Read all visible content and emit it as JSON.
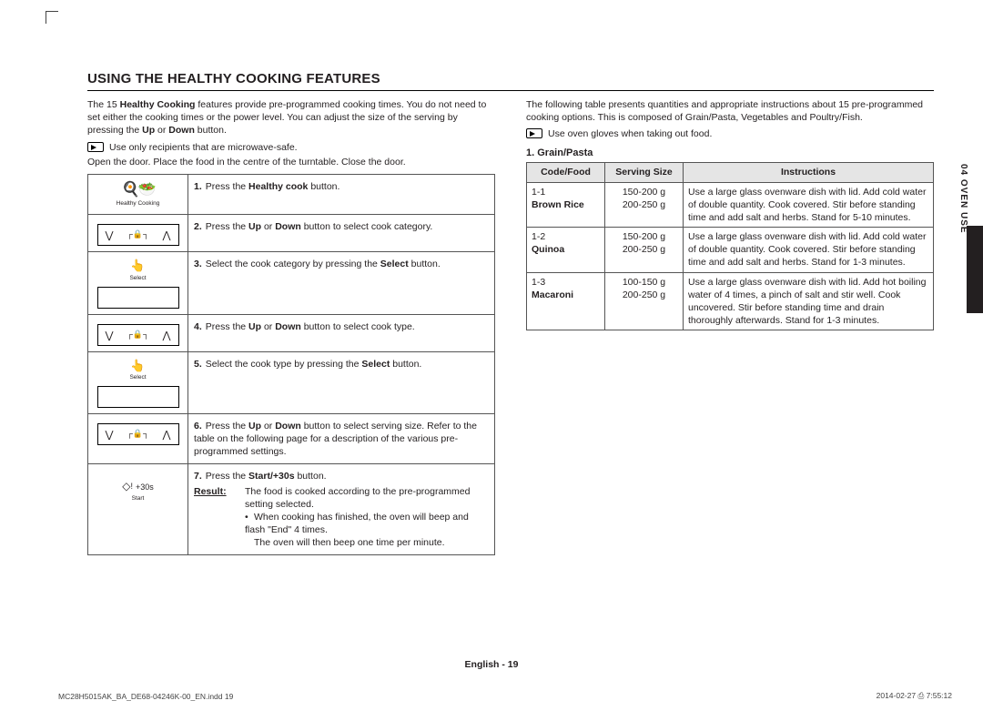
{
  "heading": "USING THE HEALTHY COOKING FEATURES",
  "left": {
    "intro_a": "The 15 ",
    "intro_bold": "Healthy Cooking",
    "intro_b": " features provide pre-programmed cooking times. You do not need to set either the cooking times or the power level. You can adjust the size of the serving by pressing the ",
    "intro_bold2": "Up",
    "intro_c": " or ",
    "intro_bold3": "Down",
    "intro_d": " button.",
    "note": "Use only recipients that are microwave-safe.",
    "open_door": "Open the door. Place the food in the centre of the turntable. Close the door.",
    "hc_label": "Healthy Cooking",
    "select_label": "Select",
    "start_label": "Start",
    "start_btn": "+30s",
    "steps": {
      "s1a": "Press the ",
      "s1b": "Healthy cook",
      "s1c": " button.",
      "s2a": "Press the ",
      "s2b": "Up",
      "s2c": " or ",
      "s2d": "Down",
      "s2e": " button to select cook category.",
      "s3a": "Select the cook category by pressing the ",
      "s3b": "Select",
      "s3c": " button.",
      "s4a": "Press the ",
      "s4b": "Up",
      "s4c": " or ",
      "s4d": "Down",
      "s4e": " button to select cook type.",
      "s5a": "Select the cook type by pressing the ",
      "s5b": "Select",
      "s5c": " button.",
      "s6a": "Press the ",
      "s6b": "Up",
      "s6c": " or ",
      "s6d": "Down",
      "s6e": " button to select serving size. Refer to the table on the following page for a description of the various pre-programmed settings.",
      "s7a": "Press the ",
      "s7b": "Start/+30s",
      "s7c": " button.",
      "result_lbl": "Result:",
      "s7r1": "The food is cooked according to the pre-programmed setting selected.",
      "s7r2": "When cooking has finished, the oven will beep and flash \"End\" 4 times.",
      "s7r3": "The oven will then beep one time per minute."
    }
  },
  "right": {
    "intro": "The following table presents quantities and appropriate instructions about 15 pre-programmed cooking options. This is composed of Grain/Pasta, Vegetables and Poultry/Fish.",
    "note": "Use oven gloves when taking out food.",
    "subhead": "1. Grain/Pasta",
    "th1": "Code/Food",
    "th2": "Serving Size",
    "th3": "Instructions",
    "rows": [
      {
        "code": "1-1",
        "food": "Brown Rice",
        "s1": "150-200 g",
        "s2": "200-250 g",
        "instr": "Use a large glass ovenware dish with lid. Add cold water of double quantity. Cook covered. Stir before standing time and add salt and herbs. Stand for 5-10 minutes."
      },
      {
        "code": "1-2",
        "food": "Quinoa",
        "s1": "150-200 g",
        "s2": "200-250 g",
        "instr": "Use a large glass ovenware dish with lid. Add cold water of double quantity. Cook covered. Stir before standing time and add salt and herbs. Stand for 1-3 minutes."
      },
      {
        "code": "1-3",
        "food": "Macaroni",
        "s1": "100-150 g",
        "s2": "200-250 g",
        "instr": "Use a large glass ovenware dish with lid. Add hot boiling water of 4 times, a pinch of salt and stir well. Cook uncovered. Stir before standing time and drain thoroughly afterwards. Stand for 1-3 minutes."
      }
    ]
  },
  "side_tab": "04  OVEN USE",
  "footer_center": "English - 19",
  "footer_left": "MC28H5015AK_BA_DE68-04246K-00_EN.indd   19",
  "footer_right_a": "2014-02-27   ",
  "footer_right_b": "7:55:12",
  "colors": {
    "rule": "#000000",
    "cell_border": "#555555",
    "th_bg": "#e5e5e5",
    "tab_bg": "#231f20"
  }
}
